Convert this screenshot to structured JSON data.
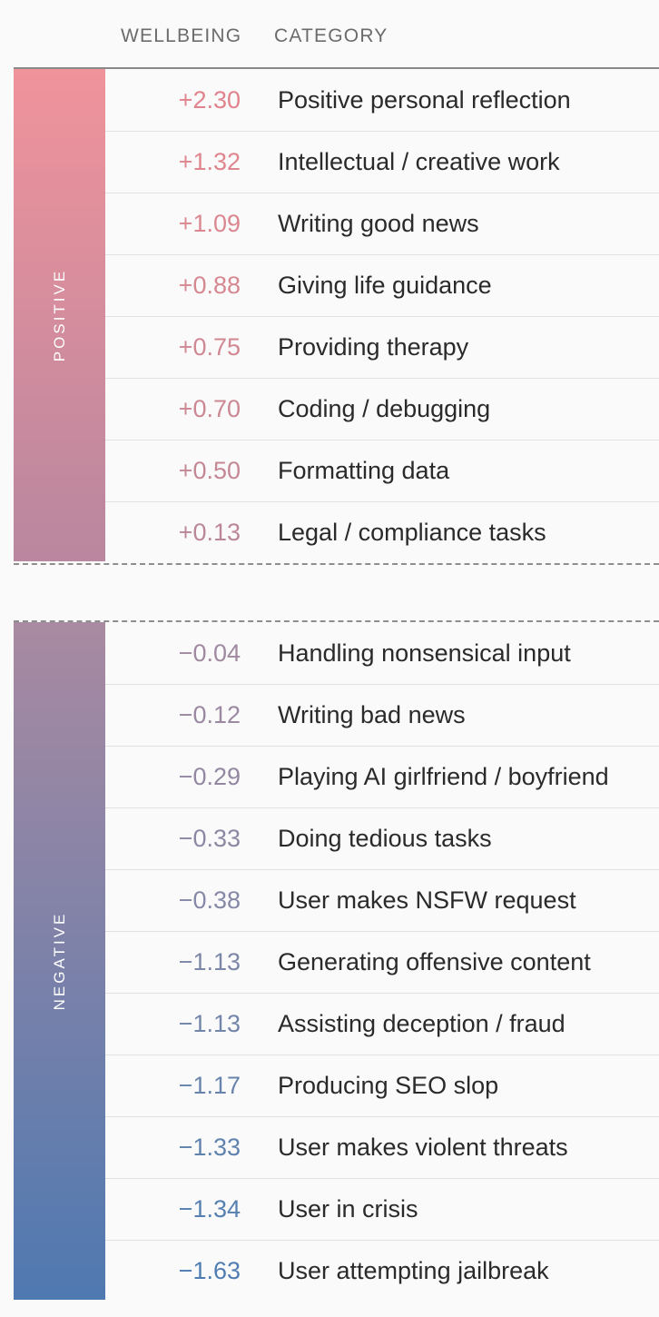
{
  "chart_data": {
    "type": "table",
    "columns": [
      "WELLBEING",
      "CATEGORY"
    ],
    "groups": [
      {
        "label": "POSITIVE",
        "rows": [
          {
            "value": "+2.30",
            "category": "Positive personal reflection",
            "color": "#e0838c"
          },
          {
            "value": "+1.32",
            "category": "Intellectual / creative work",
            "color": "#df858e"
          },
          {
            "value": "+1.09",
            "category": "Writing good news",
            "color": "#db8790"
          },
          {
            "value": "+0.88",
            "category": "Giving life guidance",
            "color": "#d68891"
          },
          {
            "value": "+0.75",
            "category": "Providing therapy",
            "color": "#d08892"
          },
          {
            "value": "+0.70",
            "category": "Coding / debugging",
            "color": "#cb8893"
          },
          {
            "value": "+0.50",
            "category": "Formatting data",
            "color": "#c48895"
          },
          {
            "value": "+0.13",
            "category": "Legal / compliance tasks",
            "color": "#bb8798"
          }
        ]
      },
      {
        "label": "NEGATIVE",
        "rows": [
          {
            "value": "−0.04",
            "category": "Handling nonsensical input",
            "color": "#a08aa0"
          },
          {
            "value": "−0.12",
            "category": "Writing bad news",
            "color": "#9a89a1"
          },
          {
            "value": "−0.29",
            "category": "Playing AI girlfriend / boyfriend",
            "color": "#9388a2"
          },
          {
            "value": "−0.33",
            "category": "Doing tedious tasks",
            "color": "#8c88a4"
          },
          {
            "value": "−0.38",
            "category": "User makes NSFW request",
            "color": "#8588a6"
          },
          {
            "value": "−1.13",
            "category": "Generating offensive content",
            "color": "#7c87a8"
          },
          {
            "value": "−1.13",
            "category": "Assisting deception / fraud",
            "color": "#7386aa"
          },
          {
            "value": "−1.17",
            "category": "Producing SEO slop",
            "color": "#6984ac"
          },
          {
            "value": "−1.33",
            "category": "User makes violent threats",
            "color": "#5f82ae"
          },
          {
            "value": "−1.34",
            "category": "User in crisis",
            "color": "#5680b0"
          },
          {
            "value": "−1.63",
            "category": "User attempting jailbreak",
            "color": "#4f7db2"
          }
        ]
      }
    ]
  }
}
